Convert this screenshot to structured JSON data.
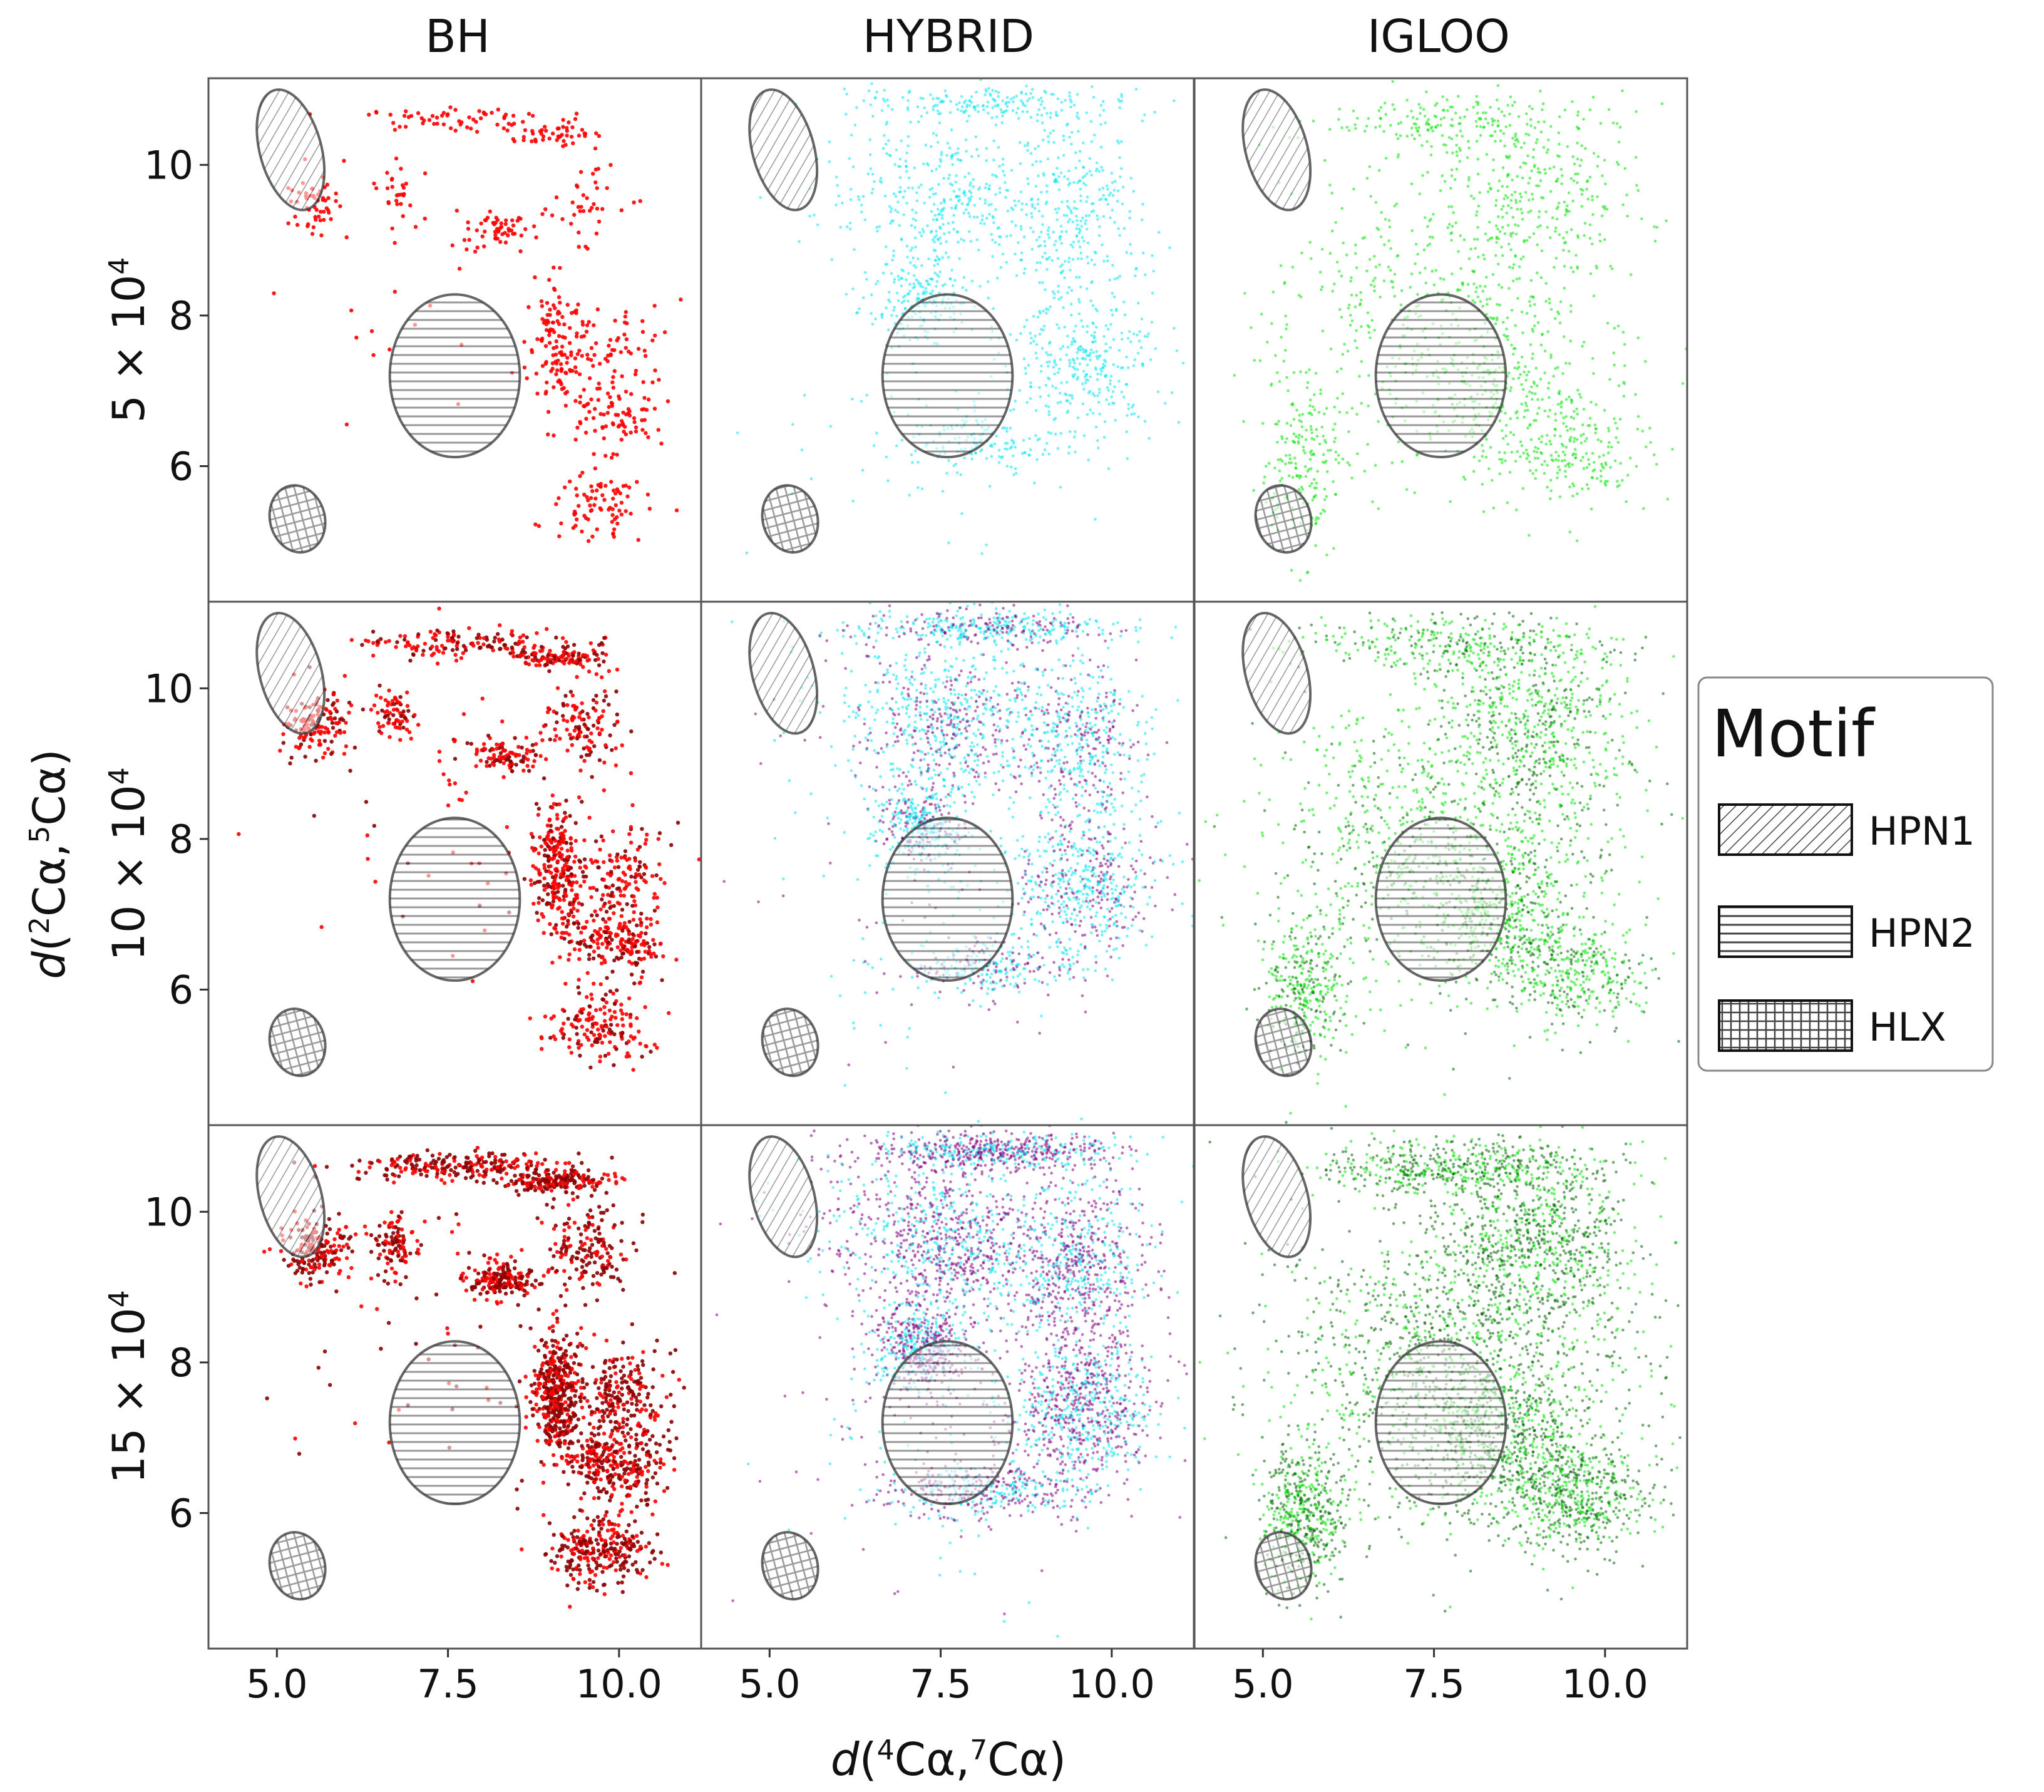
{
  "chart_data": {
    "type": "scatter",
    "grid_columns": [
      "BH",
      "HYBRID",
      "IGLOO"
    ],
    "grid_rows": [
      {
        "label_coeff": "5",
        "label_exp": "4"
      },
      {
        "label_coeff": "10",
        "label_exp": "4"
      },
      {
        "label_coeff": "15",
        "label_exp": "4"
      }
    ],
    "row_label_times": "× 10",
    "xlabel": {
      "d": "d",
      "open": "(",
      "sup1": "4",
      "mid": "Cα,",
      "sup2": "7",
      "end": "Cα)"
    },
    "ylabel": {
      "d": "d",
      "open": "(",
      "sup1": "2",
      "mid": "Cα,",
      "sup2": "5",
      "end": "Cα)"
    },
    "xlim": [
      4.0,
      11.2
    ],
    "ylim": [
      4.2,
      11.15
    ],
    "xticks": [
      5.0,
      7.5,
      10.0
    ],
    "xtick_labels": [
      "5.0",
      "7.5",
      "10.0"
    ],
    "yticks": [
      6,
      8,
      10
    ],
    "ytick_labels": [
      "6",
      "8",
      "10"
    ],
    "motifs": [
      {
        "name": "HPN1",
        "hatch": "diagonal",
        "cx": 5.2,
        "cy": 10.2,
        "rx": 0.45,
        "ry": 0.82,
        "angle": -15
      },
      {
        "name": "HPN2",
        "hatch": "horizontal",
        "cx": 7.6,
        "cy": 7.2,
        "rx": 0.95,
        "ry": 1.08,
        "angle": 0
      },
      {
        "name": "HLX",
        "hatch": "grid",
        "cx": 5.3,
        "cy": 5.3,
        "rx": 0.4,
        "ry": 0.45,
        "angle": -15
      }
    ],
    "colors": {
      "BH": [
        "#ff0000",
        "#8b0000"
      ],
      "HYBRID": [
        "#00e6f0",
        "#800080"
      ],
      "IGLOO": [
        "#00e600",
        "#006400"
      ]
    },
    "clusters": {
      "BH": [
        {
          "cx": 7.8,
          "cy": 10.6,
          "sx": 1.4,
          "sy": 0.15,
          "w": 3
        },
        {
          "cx": 9.1,
          "cy": 10.4,
          "sx": 0.6,
          "sy": 0.12,
          "w": 2
        },
        {
          "cx": 5.6,
          "cy": 9.5,
          "sx": 0.4,
          "sy": 0.35,
          "w": 2
        },
        {
          "cx": 6.7,
          "cy": 9.6,
          "sx": 0.25,
          "sy": 0.3,
          "w": 1
        },
        {
          "cx": 8.3,
          "cy": 9.1,
          "sx": 0.4,
          "sy": 0.2,
          "w": 2
        },
        {
          "cx": 9.1,
          "cy": 7.6,
          "sx": 0.3,
          "sy": 0.7,
          "w": 5
        },
        {
          "cx": 9.6,
          "cy": 6.7,
          "sx": 0.3,
          "sy": 0.25,
          "w": 1
        },
        {
          "cx": 9.7,
          "cy": 5.5,
          "sx": 0.6,
          "sy": 0.4,
          "w": 3
        },
        {
          "cx": 10.1,
          "cy": 6.6,
          "sx": 0.5,
          "sy": 0.4,
          "w": 2
        },
        {
          "cx": 9.5,
          "cy": 9.5,
          "sx": 0.5,
          "sy": 0.5,
          "w": 2
        },
        {
          "cx": 10.0,
          "cy": 7.5,
          "sx": 0.6,
          "sy": 0.6,
          "w": 3
        },
        {
          "cx": 7.5,
          "cy": 8.5,
          "sx": 2.0,
          "sy": 1.6,
          "w": 1
        }
      ],
      "HYBRID": [
        {
          "cx": 9.5,
          "cy": 9.3,
          "sx": 0.8,
          "sy": 1.0,
          "w": 4
        },
        {
          "cx": 8.3,
          "cy": 10.8,
          "sx": 1.6,
          "sy": 0.2,
          "w": 3
        },
        {
          "cx": 9.6,
          "cy": 7.4,
          "sx": 0.9,
          "sy": 0.8,
          "w": 4
        },
        {
          "cx": 7.2,
          "cy": 8.2,
          "sx": 0.6,
          "sy": 0.5,
          "w": 3
        },
        {
          "cx": 7.8,
          "cy": 9.5,
          "sx": 1.0,
          "sy": 0.8,
          "w": 3
        },
        {
          "cx": 8.2,
          "cy": 6.3,
          "sx": 1.2,
          "sy": 0.3,
          "w": 2
        },
        {
          "cx": 7.0,
          "cy": 9.8,
          "sx": 1.5,
          "sy": 0.9,
          "w": 2
        },
        {
          "cx": 7.5,
          "cy": 7.0,
          "sx": 2.0,
          "sy": 1.8,
          "w": 1
        }
      ],
      "IGLOO": [
        {
          "cx": 7.8,
          "cy": 8.0,
          "sx": 2.2,
          "sy": 1.7,
          "w": 6
        },
        {
          "cx": 9.0,
          "cy": 9.6,
          "sx": 1.2,
          "sy": 0.9,
          "w": 3
        },
        {
          "cx": 7.8,
          "cy": 10.6,
          "sx": 1.8,
          "sy": 0.3,
          "w": 2
        },
        {
          "cx": 9.6,
          "cy": 6.2,
          "sx": 0.9,
          "sy": 0.6,
          "w": 2
        },
        {
          "cx": 5.6,
          "cy": 6.0,
          "sx": 0.5,
          "sy": 0.8,
          "w": 2
        },
        {
          "cx": 8.5,
          "cy": 6.9,
          "sx": 1.0,
          "sy": 0.8,
          "w": 2
        }
      ]
    },
    "legend": {
      "title": "Motif",
      "placement": "right-center",
      "entries": [
        {
          "label": "HPN1",
          "hatch": "diagonal"
        },
        {
          "label": "HPN2",
          "hatch": "horizontal"
        },
        {
          "label": "HLX",
          "hatch": "grid"
        }
      ]
    }
  }
}
